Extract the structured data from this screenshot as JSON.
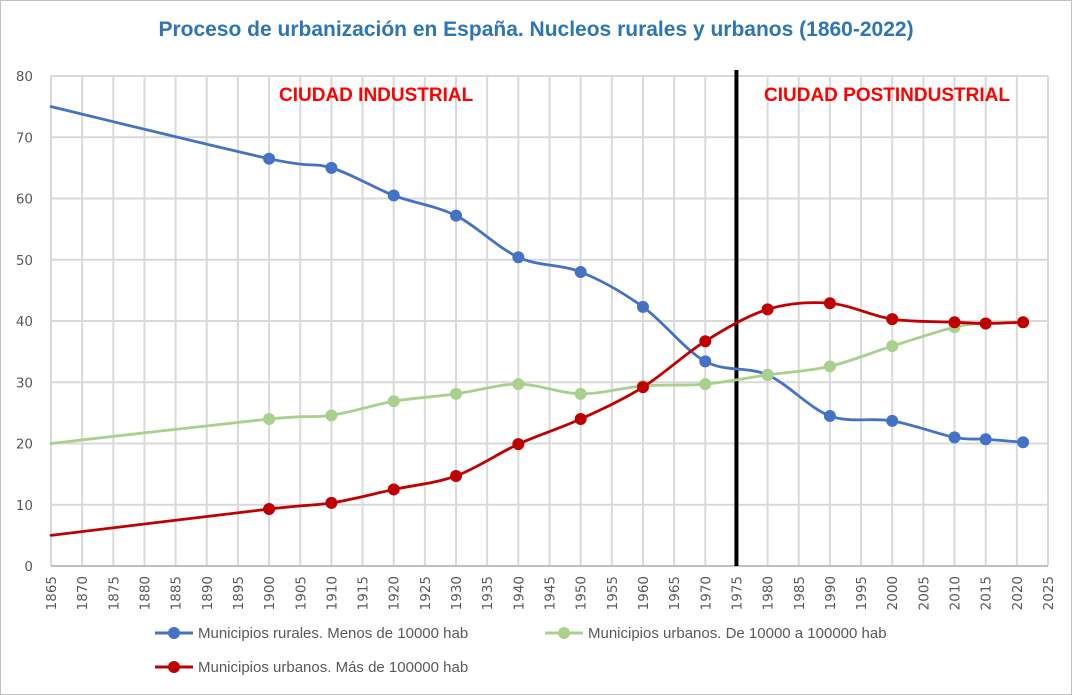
{
  "chart_data": {
    "type": "line",
    "title": "Proceso de urbanización en España. Nucleos rurales y urbanos (1860-2022)",
    "xlabel": "",
    "ylabel": "",
    "xlim": [
      1865,
      2025
    ],
    "ylim": [
      0,
      80
    ],
    "x_ticks": [
      "1865",
      "1870",
      "1875",
      "1880",
      "1885",
      "1890",
      "1895",
      "1900",
      "1905",
      "1910",
      "1915",
      "1920",
      "1925",
      "1930",
      "1935",
      "1940",
      "1945",
      "1950",
      "1955",
      "1960",
      "1965",
      "1970",
      "1975",
      "1980",
      "1985",
      "1990",
      "1995",
      "2000",
      "2005",
      "2010",
      "2015",
      "2020",
      "2025"
    ],
    "y_ticks": [
      "0",
      "10",
      "20",
      "30",
      "40",
      "50",
      "60",
      "70",
      "80"
    ],
    "grid": true,
    "legend_position": "bottom",
    "series": [
      {
        "name": "Municipios rurales. Menos de 10000 hab",
        "color": "#4472c4",
        "points": [
          {
            "x": 1865,
            "y": 75.0,
            "marker": false
          },
          {
            "x": 1900,
            "y": 66.5,
            "marker": true
          },
          {
            "x": 1910,
            "y": 65.0,
            "marker": true
          },
          {
            "x": 1920,
            "y": 60.5,
            "marker": true
          },
          {
            "x": 1930,
            "y": 57.2,
            "marker": true
          },
          {
            "x": 1940,
            "y": 50.4,
            "marker": true
          },
          {
            "x": 1950,
            "y": 48.0,
            "marker": true
          },
          {
            "x": 1960,
            "y": 42.3,
            "marker": true
          },
          {
            "x": 1970,
            "y": 33.4,
            "marker": true
          },
          {
            "x": 1980,
            "y": 31.2,
            "marker": true
          },
          {
            "x": 1990,
            "y": 24.5,
            "marker": true
          },
          {
            "x": 2000,
            "y": 23.7,
            "marker": true
          },
          {
            "x": 2010,
            "y": 21.0,
            "marker": true
          },
          {
            "x": 2015,
            "y": 20.7,
            "marker": true
          },
          {
            "x": 2021,
            "y": 20.2,
            "marker": true
          }
        ]
      },
      {
        "name": "Municipios urbanos. De 10000 a 100000 hab",
        "color": "#a9d18e",
        "points": [
          {
            "x": 1865,
            "y": 20.0,
            "marker": false
          },
          {
            "x": 1900,
            "y": 24.0,
            "marker": true
          },
          {
            "x": 1910,
            "y": 24.6,
            "marker": true
          },
          {
            "x": 1920,
            "y": 26.9,
            "marker": true
          },
          {
            "x": 1930,
            "y": 28.1,
            "marker": true
          },
          {
            "x": 1940,
            "y": 29.7,
            "marker": true
          },
          {
            "x": 1950,
            "y": 28.1,
            "marker": true
          },
          {
            "x": 1960,
            "y": 29.4,
            "marker": true
          },
          {
            "x": 1970,
            "y": 29.7,
            "marker": true
          },
          {
            "x": 1980,
            "y": 31.2,
            "marker": true
          },
          {
            "x": 1990,
            "y": 32.6,
            "marker": true
          },
          {
            "x": 2000,
            "y": 35.9,
            "marker": true
          },
          {
            "x": 2010,
            "y": 39.0,
            "marker": true
          },
          {
            "x": 2015,
            "y": 39.6,
            "marker": true
          },
          {
            "x": 2021,
            "y": 39.8,
            "marker": true
          }
        ]
      },
      {
        "name": "Municipios urbanos. Más de 100000 hab",
        "color": "#c00000",
        "points": [
          {
            "x": 1865,
            "y": 5.0,
            "marker": false
          },
          {
            "x": 1900,
            "y": 9.3,
            "marker": true
          },
          {
            "x": 1910,
            "y": 10.3,
            "marker": true
          },
          {
            "x": 1920,
            "y": 12.5,
            "marker": true
          },
          {
            "x": 1930,
            "y": 14.7,
            "marker": true
          },
          {
            "x": 1940,
            "y": 19.9,
            "marker": true
          },
          {
            "x": 1950,
            "y": 24.0,
            "marker": true
          },
          {
            "x": 1960,
            "y": 29.2,
            "marker": true
          },
          {
            "x": 1970,
            "y": 36.7,
            "marker": true
          },
          {
            "x": 1980,
            "y": 41.9,
            "marker": true
          },
          {
            "x": 1990,
            "y": 42.9,
            "marker": true
          },
          {
            "x": 2000,
            "y": 40.3,
            "marker": true
          },
          {
            "x": 2010,
            "y": 39.8,
            "marker": true
          },
          {
            "x": 2015,
            "y": 39.6,
            "marker": true
          },
          {
            "x": 2021,
            "y": 39.8,
            "marker": true
          }
        ]
      }
    ],
    "vertical_marker": {
      "x": 1975,
      "color": "#000000"
    },
    "annotations": [
      {
        "text": "CIUDAD INDUSTRIAL",
        "x": 1900,
        "y": 76,
        "color": "#ff0000"
      },
      {
        "text": "CIUDAD POSTINDUSTRIAL",
        "x": 1976,
        "y": 76,
        "color": "#ff0000"
      }
    ]
  }
}
